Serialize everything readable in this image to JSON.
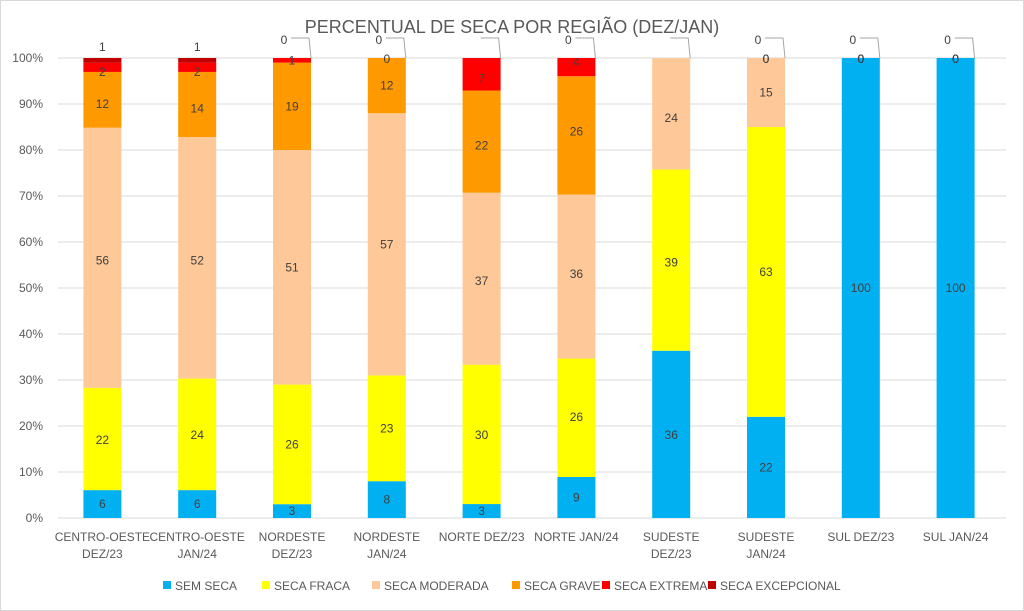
{
  "chart_data": {
    "type": "bar",
    "stacked": "percent",
    "title": "PERCENTUAL DE SECA POR REGIÃO (DEZ/JAN)",
    "xlabel": "",
    "ylabel": "",
    "ylim": [
      0,
      100
    ],
    "yticks": [
      "0%",
      "10%",
      "20%",
      "30%",
      "40%",
      "50%",
      "60%",
      "70%",
      "80%",
      "90%",
      "100%"
    ],
    "grid": true,
    "legend_position": "bottom",
    "categories": [
      [
        "CENTRO-OESTE",
        "DEZ/23"
      ],
      [
        "CENTRO-OESTE",
        "JAN/24"
      ],
      [
        "NORDESTE",
        "DEZ/23"
      ],
      [
        "NORDESTE",
        "JAN/24"
      ],
      [
        "NORTE DEZ/23"
      ],
      [
        "NORTE JAN/24"
      ],
      [
        "SUDESTE",
        "DEZ/23"
      ],
      [
        "SUDESTE",
        "JAN/24"
      ],
      [
        "SUL DEZ/23"
      ],
      [
        "SUL JAN/24"
      ]
    ],
    "series": [
      {
        "name": "SEM SECA",
        "color": "#00b0f0",
        "values": [
          6,
          6,
          3,
          8,
          3,
          9,
          36,
          22,
          100,
          100
        ]
      },
      {
        "name": "SECA FRACA",
        "color": "#ffff00",
        "values": [
          22,
          24,
          26,
          23,
          30,
          26,
          39,
          63,
          0,
          0
        ]
      },
      {
        "name": "SECA MODERADA",
        "color": "#ffc898",
        "values": [
          56,
          52,
          51,
          57,
          37,
          36,
          24,
          15,
          0,
          0
        ]
      },
      {
        "name": "SECA GRAVE",
        "color": "#ff9900",
        "values": [
          12,
          14,
          19,
          12,
          22,
          26,
          0,
          0,
          0,
          0
        ]
      },
      {
        "name": "SECA EXTREMA",
        "color": "#ff0000",
        "values": [
          2,
          2,
          1,
          0,
          7,
          4,
          0,
          0,
          0,
          0
        ]
      },
      {
        "name": "SECA EXCEPCIONAL",
        "color": "#c00000",
        "values": [
          1,
          1,
          0,
          0,
          0,
          0,
          0,
          0,
          0,
          0
        ]
      }
    ]
  }
}
